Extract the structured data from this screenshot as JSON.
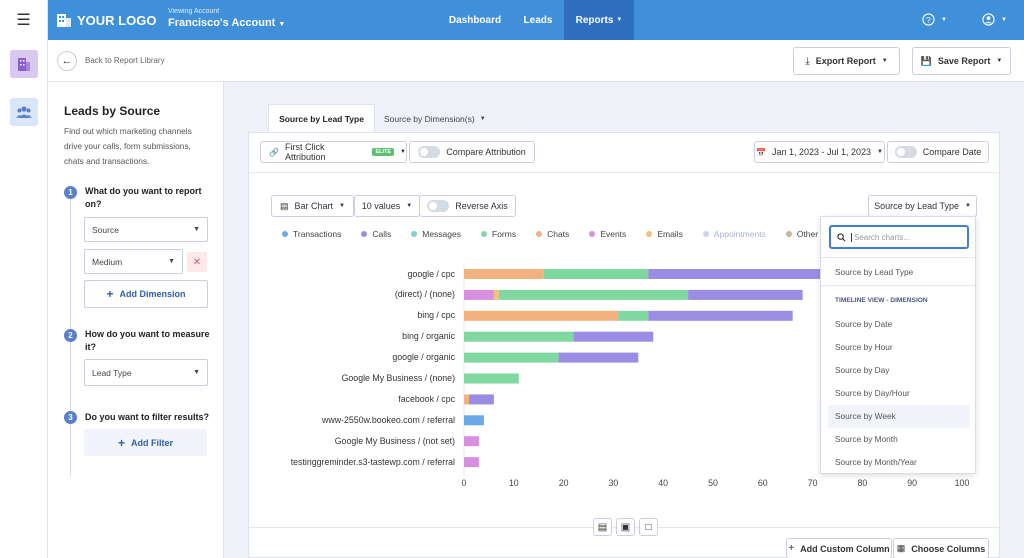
{
  "topbar": {
    "logo_text": "YOUR LOGO",
    "viewing_label": "Viewing Account",
    "account_name": "Francisco's Account",
    "nav": [
      {
        "label": "Dashboard"
      },
      {
        "label": "Leads"
      },
      {
        "label": "Reports"
      }
    ]
  },
  "subheader": {
    "back_label": "Back to Report Library",
    "export_label": "Export Report",
    "save_label": "Save Report"
  },
  "panel": {
    "title": "Leads by Source",
    "description_lines": [
      "Find out which marketing channels",
      "drive your calls, form submissions,",
      "chats and transactions."
    ],
    "step1_line1": "What do you want to report",
    "step1_line2": "on?",
    "step1_select1": "Source",
    "step1_select2": "Medium",
    "add_dimension": "Add Dimension",
    "step2_line1": "How do you want to measure",
    "step2_line2": "it?",
    "step2_select": "Lead Type",
    "step3": "Do you want to filter results?",
    "add_filter": "Add Filter",
    "step_numbers": [
      "1",
      "2",
      "3"
    ]
  },
  "tabs": [
    {
      "label": "Source by Lead Type"
    },
    {
      "label": "Source by Dimension(s)"
    }
  ],
  "toolbar": {
    "attribution": "First Click Attribution",
    "elite_badge": "ELITE",
    "compare_attribution": "Compare Attribution",
    "date_range": "Jan 1, 2023 - Jul 1, 2023",
    "compare_date": "Compare Date",
    "chart_type": "Bar Chart",
    "values_count": "10 values",
    "reverse_axis": "Reverse Axis",
    "chart_selector": "Source by Lead Type"
  },
  "chart_data": {
    "type": "bar",
    "orientation": "horizontal",
    "stacked": true,
    "categories": [
      "google / cpc",
      "(direct) / (none)",
      "bing / cpc",
      "bing / organic",
      "google / organic",
      "Google My Business / (none)",
      "facebook / cpc",
      "www-2550w.bookeo.com / referral",
      "Google My Business / (not set)",
      "testinggreminder.s3-tastewp.com / referral"
    ],
    "xlim": [
      0,
      100
    ],
    "xticks": [
      "0",
      "10",
      "20",
      "30",
      "40",
      "50",
      "60",
      "70",
      "80",
      "90",
      "100"
    ],
    "legend": [
      {
        "name": "Transactions",
        "color": "#6aa8e8"
      },
      {
        "name": "Calls",
        "color": "#9b8de3"
      },
      {
        "name": "Messages",
        "color": "#7fd3cc"
      },
      {
        "name": "Forms",
        "color": "#7fd8a0"
      },
      {
        "name": "Chats",
        "color": "#f2b27f"
      },
      {
        "name": "Events",
        "color": "#d78fe0"
      },
      {
        "name": "Emails",
        "color": "#f3c17c"
      },
      {
        "name": "Appointments",
        "color": "#ccd3f0"
      },
      {
        "name": "Other",
        "color": "#c8b49e"
      }
    ],
    "series": [
      {
        "name": "Transactions",
        "values": [
          0,
          0,
          0,
          0,
          0,
          0,
          0,
          4,
          0,
          0
        ]
      },
      {
        "name": "Chats",
        "values": [
          16,
          0,
          31,
          0,
          0,
          0,
          1,
          0,
          0,
          0
        ]
      },
      {
        "name": "Events",
        "values": [
          0,
          6,
          0,
          0,
          0,
          0,
          0,
          0,
          3,
          3
        ]
      },
      {
        "name": "Emails",
        "values": [
          0,
          1,
          0,
          0,
          0,
          0,
          0,
          0,
          0,
          0
        ]
      },
      {
        "name": "Forms",
        "values": [
          21,
          38,
          6,
          22,
          19,
          11,
          0,
          0,
          0,
          0
        ]
      },
      {
        "name": "Calls",
        "values": [
          39,
          23,
          29,
          16,
          16,
          0,
          5,
          0,
          0,
          0
        ]
      }
    ]
  },
  "dropdown": {
    "search_placeholder": "Search charts...",
    "item_top": "Source by Lead Type",
    "section_label": "TIMELINE VIEW - DIMENSION",
    "items": [
      "Source by Date",
      "Source by Hour",
      "Source by Day",
      "Source by Day/Hour",
      "Source by Week",
      "Source by Month",
      "Source by Month/Year"
    ]
  },
  "footer": {
    "add_custom_column": "Add Custom Column",
    "choose_columns": "Choose Columns"
  }
}
